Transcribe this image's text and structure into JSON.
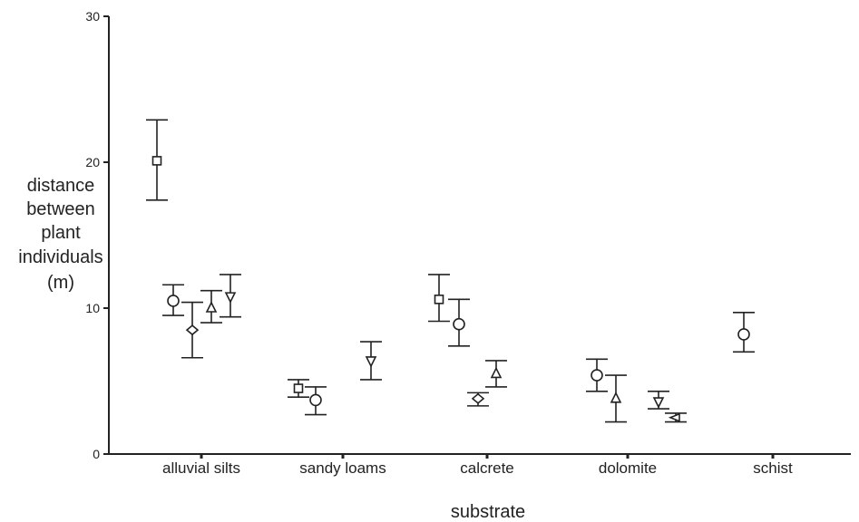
{
  "chart_data": {
    "type": "scatter",
    "title": "",
    "xlabel": "substrate",
    "ylabel_lines": [
      "distance",
      "between",
      "plant",
      "individuals",
      "(m)"
    ],
    "categories": [
      "alluvial silts",
      "sandy loams",
      "calcrete",
      "dolomite",
      "schist"
    ],
    "yticks": [
      "0",
      "10",
      "20",
      "30"
    ],
    "ylim": [
      0,
      30
    ],
    "grid": false,
    "legend": "none",
    "series": [
      {
        "marker": "square",
        "points": [
          {
            "cat": 0,
            "y": 20.1,
            "lo": 17.4,
            "hi": 22.9
          },
          {
            "cat": 1,
            "y": 4.5,
            "lo": 3.9,
            "hi": 5.1
          },
          {
            "cat": 2,
            "y": 10.6,
            "lo": 9.1,
            "hi": 12.3
          }
        ]
      },
      {
        "marker": "circle",
        "points": [
          {
            "cat": 0,
            "y": 10.5,
            "lo": 9.5,
            "hi": 11.6
          },
          {
            "cat": 1,
            "y": 3.7,
            "lo": 2.7,
            "hi": 4.6
          },
          {
            "cat": 2,
            "y": 8.9,
            "lo": 7.4,
            "hi": 10.6
          },
          {
            "cat": 3,
            "y": 5.4,
            "lo": 4.3,
            "hi": 6.5
          },
          {
            "cat": 4,
            "y": 8.2,
            "lo": 7.0,
            "hi": 9.7
          }
        ]
      },
      {
        "marker": "diamond",
        "points": [
          {
            "cat": 0,
            "y": 8.5,
            "lo": 6.6,
            "hi": 10.4
          },
          {
            "cat": 2,
            "y": 3.8,
            "lo": 3.3,
            "hi": 4.2
          }
        ]
      },
      {
        "marker": "triangle-up",
        "points": [
          {
            "cat": 0,
            "y": 10.0,
            "lo": 9.0,
            "hi": 11.2
          },
          {
            "cat": 2,
            "y": 5.5,
            "lo": 4.6,
            "hi": 6.4
          },
          {
            "cat": 3,
            "y": 3.8,
            "lo": 2.2,
            "hi": 5.4
          }
        ]
      },
      {
        "marker": "triangle-down",
        "points": [
          {
            "cat": 0,
            "y": 10.8,
            "lo": 9.4,
            "hi": 12.3
          },
          {
            "cat": 1,
            "y": 6.4,
            "lo": 5.1,
            "hi": 7.7
          },
          {
            "cat": 3,
            "y": 3.6,
            "lo": 3.1,
            "hi": 4.3
          }
        ]
      },
      {
        "marker": "triangle-left",
        "points": [
          {
            "cat": 3,
            "y": 2.5,
            "lo": 2.2,
            "hi": 2.8
          }
        ]
      }
    ]
  }
}
